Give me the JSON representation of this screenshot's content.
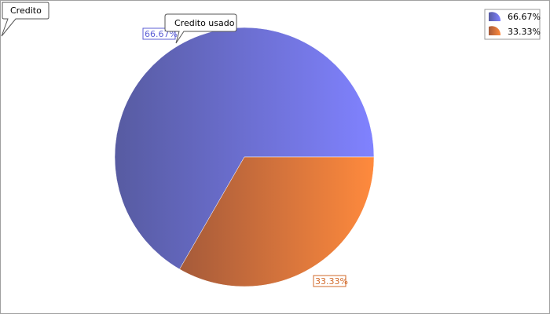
{
  "chart_data": {
    "type": "pie",
    "categories": [
      "66.67%",
      "33.33%"
    ],
    "values": [
      66.67,
      33.33
    ],
    "data_labels": [
      "66.67%",
      "33.33%"
    ],
    "colors": [
      "#7f81ff",
      "#ff8a3d"
    ],
    "legend": {
      "placement": "top-right",
      "entries": [
        "66.67%",
        "33.33%"
      ]
    }
  },
  "annotations": {
    "corner_callout": "Credito",
    "slice_callout": "Credito usado"
  },
  "colors": {
    "slice1_light": "#8082ff",
    "slice1_dark": "#575ba1",
    "slice2_light": "#ff8a3d",
    "slice2_dark": "#a55a3a",
    "slice1_label": "#5c5fd6",
    "slice2_label": "#d26a2a"
  }
}
